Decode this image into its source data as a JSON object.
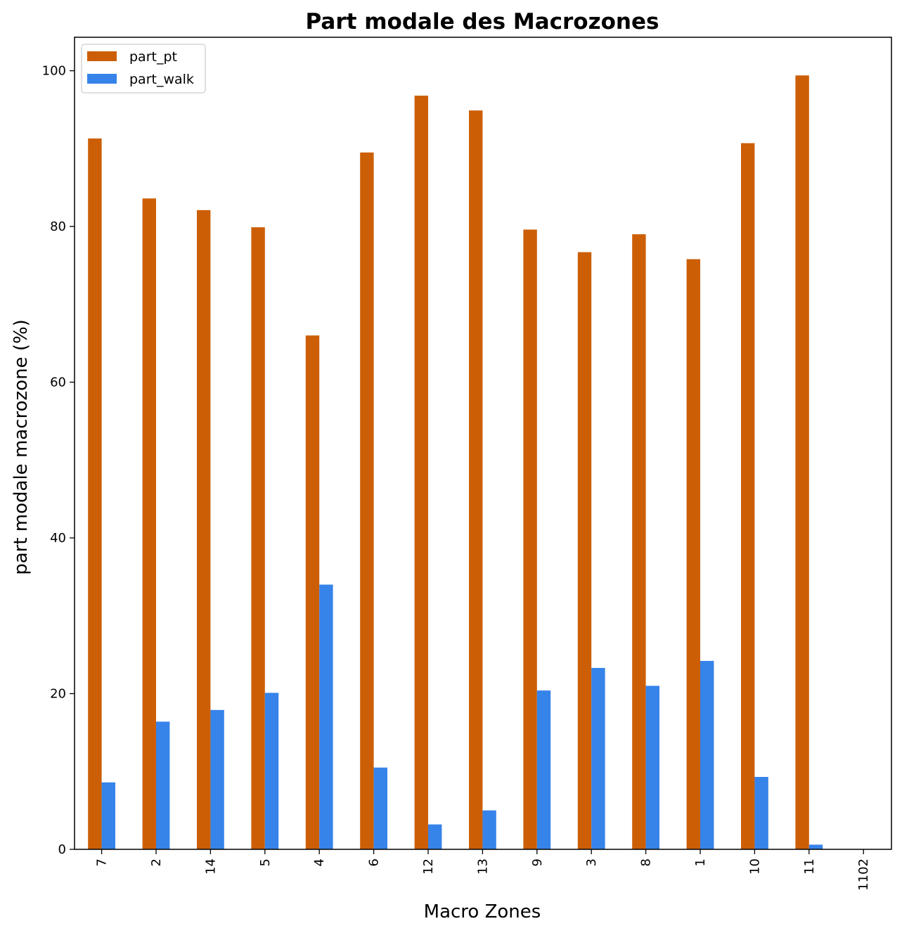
{
  "chart_data": {
    "type": "bar",
    "title": "Part modale des Macrozones",
    "xlabel": "Macro Zones",
    "ylabel": "part modale macrozone (%)",
    "categories": [
      "7",
      "2",
      "14",
      "5",
      "4",
      "6",
      "12",
      "13",
      "9",
      "3",
      "8",
      "1",
      "10",
      "11",
      "1102"
    ],
    "series": [
      {
        "name": "part_pt",
        "color": "#cc5f06",
        "values": [
          91.3,
          83.6,
          82.1,
          79.9,
          66.0,
          89.5,
          96.8,
          94.9,
          79.6,
          76.7,
          79.0,
          75.8,
          90.7,
          99.4,
          0
        ]
      },
      {
        "name": "part_walk",
        "color": "#3683ea",
        "values": [
          8.6,
          16.4,
          17.9,
          20.1,
          34.0,
          10.5,
          3.2,
          5.0,
          20.4,
          23.3,
          21.0,
          24.2,
          9.3,
          0.6,
          0
        ]
      }
    ],
    "ylim": [
      0,
      104.3
    ],
    "yticks": [
      0,
      20,
      40,
      60,
      80,
      100
    ],
    "legend": "upper-left",
    "grid": false
  }
}
